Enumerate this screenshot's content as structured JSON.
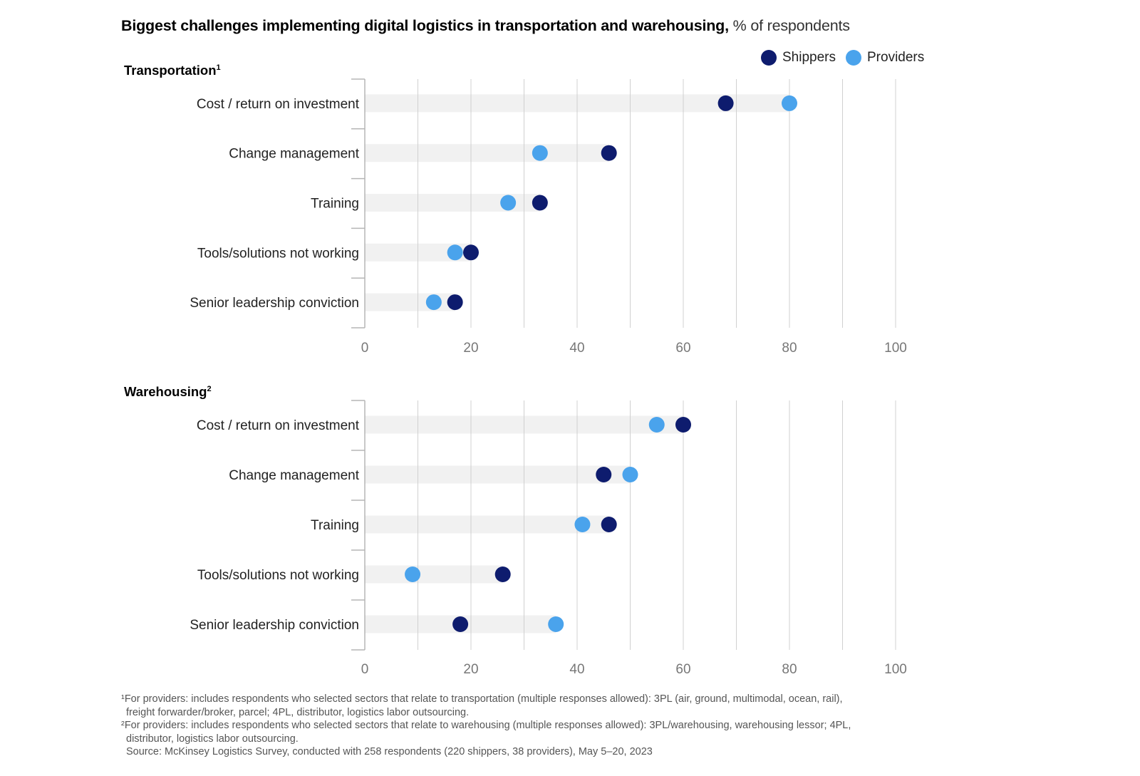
{
  "title": {
    "bold": "Biggest challenges implementing digital logistics in transportation and warehousing,",
    "light": " % of respondents"
  },
  "legend": [
    {
      "name": "Shippers",
      "color": "#0e1c6e"
    },
    {
      "name": "Providers",
      "color": "#4aa3ec"
    }
  ],
  "footnotes": {
    "line1": "¹For providers: includes respondents who selected sectors that relate to transportation (multiple responses allowed): 3PL (air, ground, multimodal, ocean, rail),",
    "line2": "freight forwarder/broker, parcel; 4PL, distributor, logistics labor outsourcing.",
    "line3": "²For providers: includes respondents who selected sectors that relate to warehousing (multiple responses allowed): 3PL/warehousing, warehousing lessor; 4PL,",
    "line4": "distributor, logistics labor outsourcing.",
    "source": "Source: McKinsey Logistics Survey, conducted with 258 respondents (220 shippers, 38 providers), May 5–20, 2023"
  },
  "chart_data": [
    {
      "type": "scatter",
      "subtype": "dot-plot",
      "title": "Transportation",
      "title_footnote": "1",
      "xlabel": "% of respondents",
      "xlim": [
        0,
        100
      ],
      "xticks": [
        0,
        20,
        40,
        60,
        80,
        100
      ],
      "gridlines_every": 10,
      "grid": true,
      "legend_position": "top-right",
      "categories": [
        "Cost / return on investment",
        "Change management",
        "Training",
        "Tools/solutions not working",
        "Senior leadership conviction"
      ],
      "series": [
        {
          "name": "Shippers",
          "color": "#0e1c6e",
          "values": [
            68,
            46,
            33,
            20,
            17
          ]
        },
        {
          "name": "Providers",
          "color": "#4aa3ec",
          "values": [
            80,
            33,
            27,
            17,
            13
          ]
        }
      ]
    },
    {
      "type": "scatter",
      "subtype": "dot-plot",
      "title": "Warehousing",
      "title_footnote": "2",
      "xlabel": "% of respondents",
      "xlim": [
        0,
        100
      ],
      "xticks": [
        0,
        20,
        40,
        60,
        80,
        100
      ],
      "gridlines_every": 10,
      "grid": true,
      "legend_position": "top-right",
      "categories": [
        "Cost / return on investment",
        "Change management",
        "Training",
        "Tools/solutions not working",
        "Senior leadership conviction"
      ],
      "series": [
        {
          "name": "Shippers",
          "color": "#0e1c6e",
          "values": [
            60,
            45,
            46,
            26,
            18
          ]
        },
        {
          "name": "Providers",
          "color": "#4aa3ec",
          "values": [
            55,
            50,
            41,
            9,
            36
          ]
        }
      ]
    }
  ]
}
